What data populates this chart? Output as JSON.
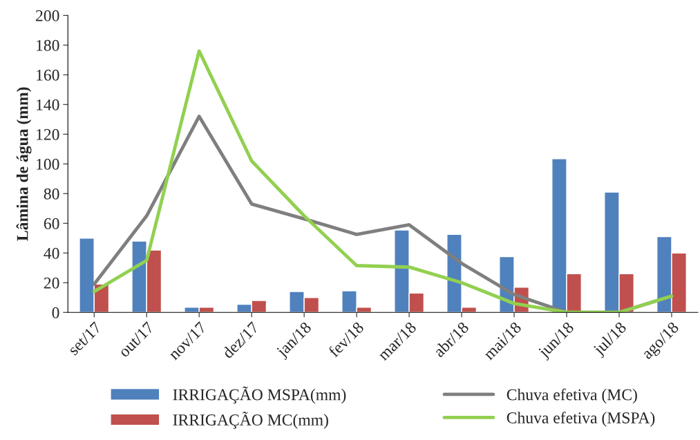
{
  "chart_data": {
    "type": "bar",
    "ylabel": "Lâmina de água (mm)",
    "categories": [
      "set/17",
      "out/17",
      "nov/17",
      "dez/17",
      "jan/18",
      "fev/18",
      "mar/18",
      "abr/18",
      "mai/18",
      "jun/18",
      "jul/18",
      "ago/18"
    ],
    "series": [
      {
        "name": "IRRIGAÇÃO MSPA(mm)",
        "color": "#4f81bd",
        "values": [
          50,
          48,
          3.5,
          5.5,
          14,
          14.5,
          55.5,
          52.5,
          37.5,
          103.5,
          81,
          51
        ]
      },
      {
        "name": "IRRIGAÇÃO MC(mm)",
        "color": "#c0504d",
        "values": [
          19,
          42,
          3.5,
          8,
          10,
          3.5,
          13,
          3.5,
          17,
          26,
          26,
          40
        ]
      },
      {
        "name": "Chuva efetiva (MC)",
        "type": "line",
        "color": "#7f7f7f",
        "values": [
          19,
          65,
          132,
          73,
          63,
          52.5,
          59,
          33,
          12,
          0,
          0,
          11
        ]
      },
      {
        "name": "Chuva efetiva (MSPA)",
        "type": "line",
        "color": "#92d050",
        "values": [
          14,
          35,
          176,
          102,
          65,
          31.5,
          30.5,
          20,
          6,
          0,
          0,
          11
        ]
      }
    ],
    "ylim": [
      0,
      200
    ],
    "yticks": [
      0,
      20,
      40,
      60,
      80,
      100,
      120,
      140,
      160,
      180,
      200
    ],
    "grid": false,
    "legend": "bottom"
  }
}
